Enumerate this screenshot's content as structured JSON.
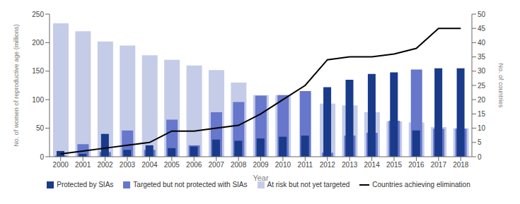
{
  "chart_data": {
    "type": "bar",
    "xlabel": "Year",
    "ylabel": "No. of women of reproductive age (millions)",
    "y2label": "No. of countries",
    "categories": [
      "2000",
      "2001",
      "2002",
      "2003",
      "2004",
      "2005",
      "2006",
      "2007",
      "2008",
      "2009",
      "2010",
      "2011",
      "2012",
      "2013",
      "2014",
      "2015",
      "2016",
      "2017",
      "2018"
    ],
    "series": [
      {
        "name": "Protected by SIAs",
        "type": "bar",
        "color": "#1a3a8a",
        "values": [
          10,
          5,
          40,
          12,
          20,
          15,
          18,
          30,
          28,
          32,
          35,
          37,
          122,
          135,
          145,
          148,
          46,
          155,
          155
        ]
      },
      {
        "name": "Targeted but not protected with SIAs",
        "type": "bar",
        "color": "#6677cc",
        "values": [
          2,
          22,
          8,
          46,
          12,
          65,
          20,
          78,
          96,
          107,
          108,
          115,
          7,
          37,
          42,
          63,
          153,
          49,
          49
        ]
      },
      {
        "name": "At risk but not yet targeted",
        "type": "bar",
        "color": "#c5cce8",
        "values": [
          234,
          220,
          202,
          195,
          178,
          170,
          160,
          152,
          130,
          108,
          108,
          0,
          93,
          90,
          78,
          62,
          60,
          52,
          50
        ]
      },
      {
        "name": "Countries achieving elimination",
        "type": "line",
        "axis": "y2",
        "color": "#000000",
        "values": [
          1,
          2,
          3,
          4,
          5,
          9,
          9,
          10,
          11,
          15,
          20,
          25,
          34,
          35,
          35,
          36,
          38,
          45,
          45
        ]
      }
    ],
    "ylim": [
      0,
      250
    ],
    "yticks": [
      0,
      50,
      100,
      150,
      200,
      250
    ],
    "y2lim": [
      0,
      50
    ],
    "y2ticks": [
      0,
      5,
      10,
      15,
      20,
      25,
      30,
      35,
      40,
      45,
      50
    ],
    "stacked": false,
    "grid": false,
    "legend": "bottom"
  }
}
